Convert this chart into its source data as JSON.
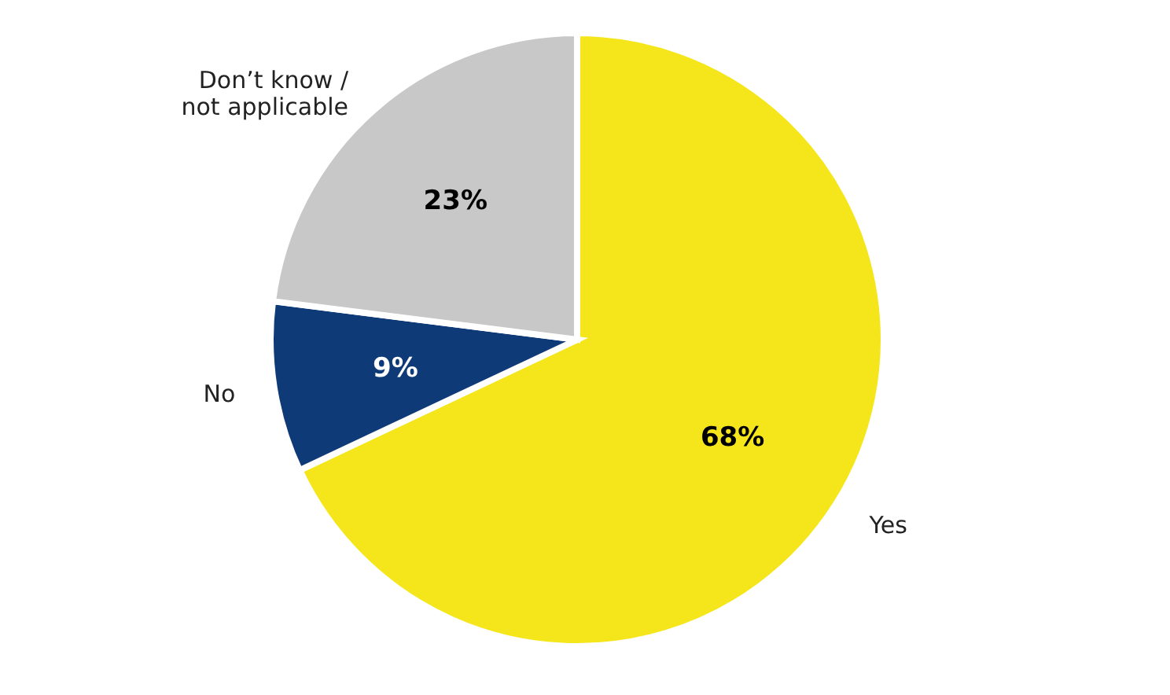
{
  "chart_data": {
    "type": "pie",
    "categories": [
      "Yes",
      "No",
      "Don’t know / not applicable"
    ],
    "values": [
      68,
      9,
      23
    ],
    "colors": [
      "#f5e61c",
      "#0e3a78",
      "#c8c8c8"
    ],
    "value_labels": [
      "68%",
      "9%",
      "23%"
    ],
    "legend": false
  }
}
